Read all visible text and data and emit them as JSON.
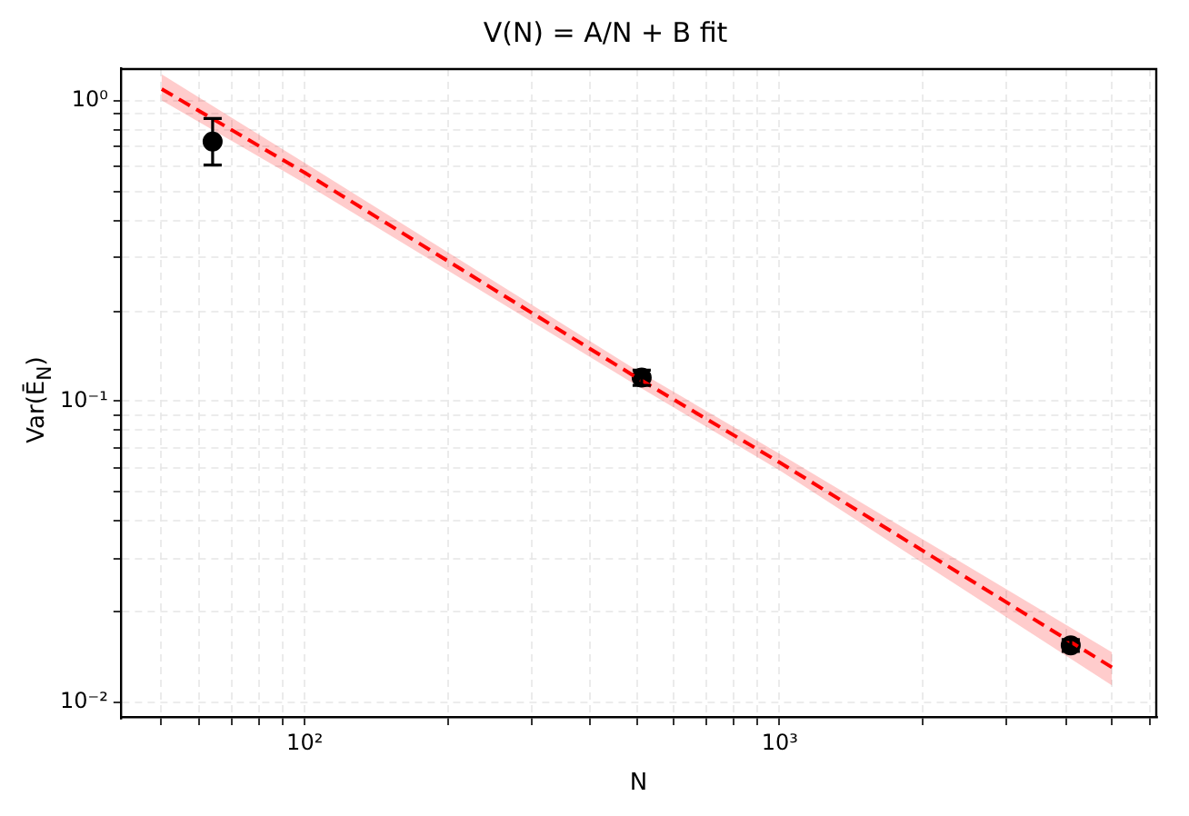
{
  "chart_data": {
    "type": "scatter",
    "title": "V(N) = A/N + B fit",
    "xlabel": "N",
    "ylabel": "Var(Ē$_{N}$)",
    "log": "xy",
    "grid": true,
    "legend": false,
    "xlim": [
      41,
      6200
    ],
    "ylim": [
      0.0089,
      1.27
    ],
    "xticks": [
      {
        "value": 50,
        "label": null
      },
      {
        "value": 60,
        "label": null
      },
      {
        "value": 70,
        "label": null
      },
      {
        "value": 80,
        "label": null
      },
      {
        "value": 90,
        "label": null
      },
      {
        "value": 100,
        "label": "10²"
      },
      {
        "value": 200,
        "label": null
      },
      {
        "value": 300,
        "label": null
      },
      {
        "value": 400,
        "label": null
      },
      {
        "value": 500,
        "label": null
      },
      {
        "value": 600,
        "label": null
      },
      {
        "value": 700,
        "label": null
      },
      {
        "value": 800,
        "label": null
      },
      {
        "value": 900,
        "label": null
      },
      {
        "value": 1000,
        "label": "10³"
      },
      {
        "value": 2000,
        "label": null
      },
      {
        "value": 3000,
        "label": null
      },
      {
        "value": 4000,
        "label": null
      },
      {
        "value": 5000,
        "label": null
      },
      {
        "value": 6000,
        "label": null
      }
    ],
    "yticks": [
      {
        "value": 0.01,
        "label": "10⁻²"
      },
      {
        "value": 0.02,
        "label": null
      },
      {
        "value": 0.03,
        "label": null
      },
      {
        "value": 0.04,
        "label": null
      },
      {
        "value": 0.05,
        "label": null
      },
      {
        "value": 0.06,
        "label": null
      },
      {
        "value": 0.07,
        "label": null
      },
      {
        "value": 0.08,
        "label": null
      },
      {
        "value": 0.09,
        "label": null
      },
      {
        "value": 0.1,
        "label": "10⁻¹"
      },
      {
        "value": 0.2,
        "label": null
      },
      {
        "value": 0.3,
        "label": null
      },
      {
        "value": 0.4,
        "label": null
      },
      {
        "value": 0.5,
        "label": null
      },
      {
        "value": 0.6,
        "label": null
      },
      {
        "value": 0.7,
        "label": null
      },
      {
        "value": 0.8,
        "label": null
      },
      {
        "value": 0.9,
        "label": null
      },
      {
        "value": 1,
        "label": "10⁰"
      }
    ],
    "series": [
      {
        "type": "line",
        "color": "#ff0000",
        "line_style": "dashed",
        "marker": "none",
        "x": [
          50,
          100,
          500,
          1000,
          5000
        ],
        "values": [
          1.09,
          0.575,
          0.12,
          0.0627,
          0.0131
        ],
        "lower": [
          1.0,
          0.53,
          0.113,
          0.059,
          0.0114
        ],
        "upper": [
          1.22,
          0.62,
          0.127,
          0.067,
          0.0147
        ]
      },
      {
        "color": "#000000",
        "marker": "circle",
        "x": [
          64,
          512,
          4096
        ],
        "values": [
          0.73,
          0.12,
          0.0155
        ],
        "errors": [
          [
            0.61,
            0.87
          ],
          [
            0.113,
            0.127
          ],
          [
            0.0148,
            0.0162
          ]
        ]
      }
    ]
  }
}
